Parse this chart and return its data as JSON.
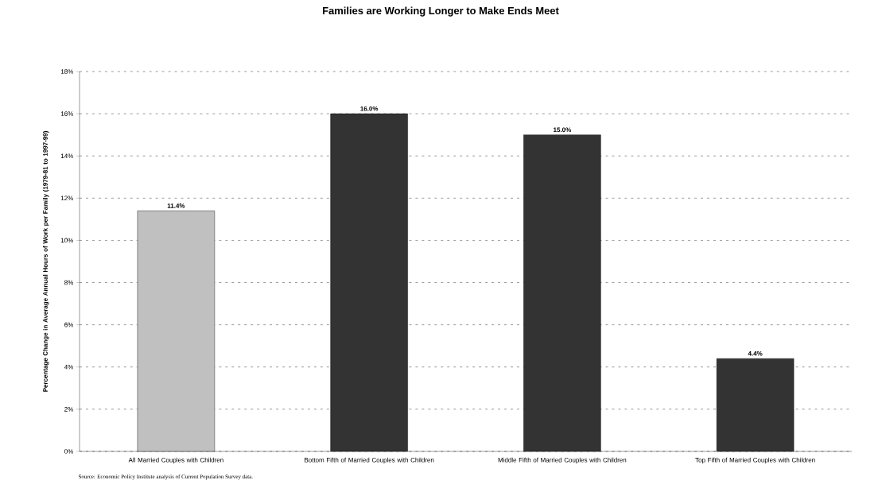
{
  "chart_data": {
    "type": "bar",
    "title": "Families are Working Longer to Make Ends Meet",
    "ylabel": "Percentage Change in Average Annual Hours of Work per Family (1979-81 to 1997-99)",
    "annotations": [
      "Source: Economic Policy Institute analysis of Current Population Survey data."
    ],
    "categories": [
      "All Married Couples with Children",
      "Bottom Fifth of Married Couples with Children",
      "Middle Fifth of Married Couples with Children",
      "Top Fifth of Married Couples with Children"
    ],
    "values": [
      11.4,
      16.0,
      15.0,
      4.4
    ],
    "colors": [
      "#c0c0c0",
      "#333333",
      "#333333",
      "#333333"
    ],
    "value_labels": [
      "11.4%",
      "16.0%",
      "15.0%",
      "4.4%"
    ],
    "ylim": [
      0,
      18
    ],
    "yticks": [
      {
        "value": 0,
        "label": "0%"
      },
      {
        "value": 2,
        "label": "2%"
      },
      {
        "value": 4,
        "label": "4%"
      },
      {
        "value": 6,
        "label": "6%"
      },
      {
        "value": 8,
        "label": "8%"
      },
      {
        "value": 10,
        "label": "10%"
      },
      {
        "value": 12,
        "label": "12%"
      },
      {
        "value": 14,
        "label": "14%"
      },
      {
        "value": 16,
        "label": "16%"
      },
      {
        "value": 18,
        "label": "18%"
      }
    ],
    "grid": "y"
  }
}
